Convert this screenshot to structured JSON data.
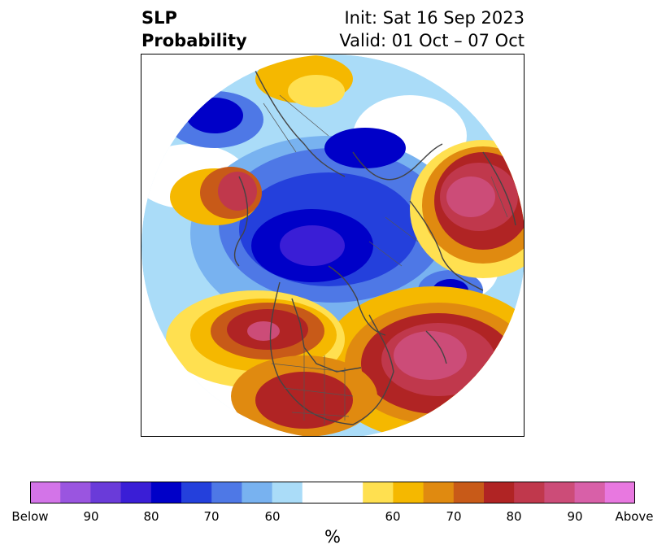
{
  "header": {
    "variable": "SLP",
    "product": "Probability",
    "init": "Init: Sat 16 Sep 2023",
    "valid": "Valid: 01 Oct – 07 Oct"
  },
  "colorbar": {
    "unit": "%",
    "tick_labels": [
      "Below",
      "90",
      "80",
      "70",
      "60",
      "60",
      "70",
      "80",
      "90",
      "Above"
    ],
    "colors": [
      "#d374e8",
      "#9a55e0",
      "#6a3bd9",
      "#3a1ed6",
      "#0000c8",
      "#2440dc",
      "#4e78e6",
      "#78b2f0",
      "#aadcf8",
      "#ffffff",
      "#ffe050",
      "#f5b800",
      "#e08a10",
      "#c85a18",
      "#b02424",
      "#c0384c",
      "#cc4c78",
      "#d860a8",
      "#e878e0"
    ]
  }
}
